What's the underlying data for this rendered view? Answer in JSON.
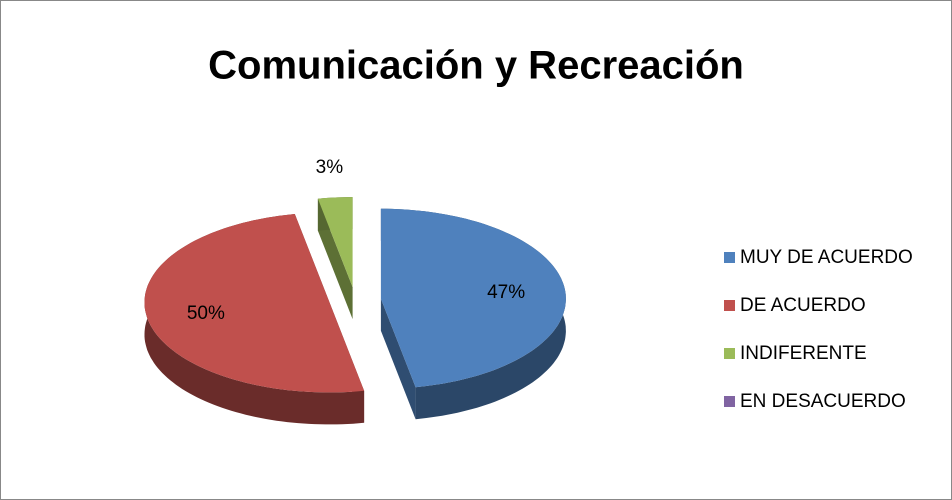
{
  "chart_data": {
    "type": "pie",
    "title": "Comunicación y Recreación",
    "categories": [
      "MUY DE ACUERDO",
      "DE ACUERDO",
      "INDIFERENTE",
      "EN DESACUERDO"
    ],
    "values": [
      47,
      50,
      3,
      0
    ],
    "value_labels": [
      "47%",
      "50%",
      "3%",
      null
    ],
    "colors": [
      "#4f81bd",
      "#c0504d",
      "#9bbb59",
      "#8064a2"
    ],
    "legend": "right"
  }
}
